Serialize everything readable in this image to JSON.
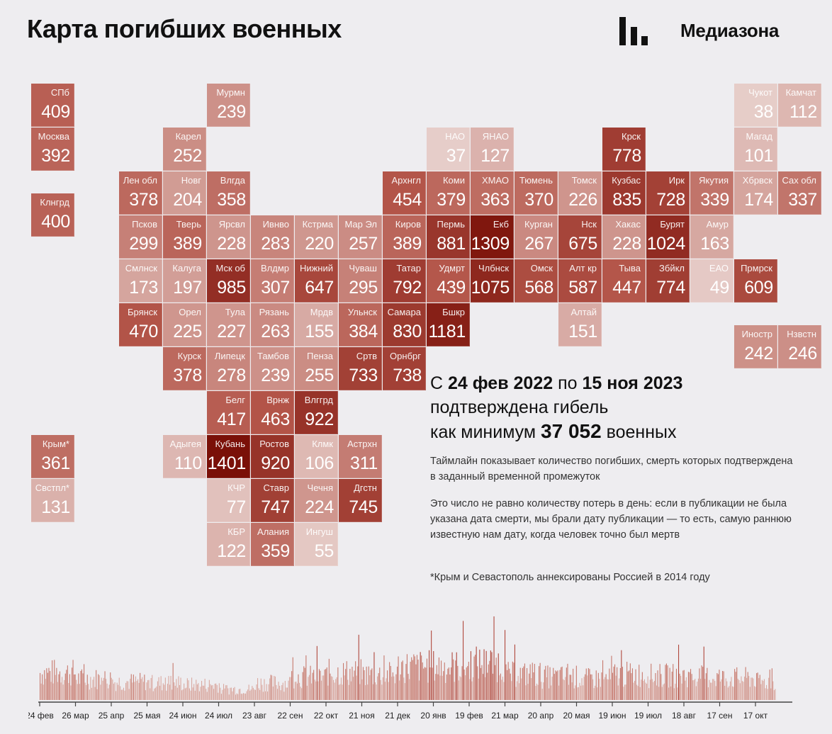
{
  "header": {
    "title": "Карта погибших военных",
    "logo_text": "Медиазона"
  },
  "colors": {
    "background": "#eeedf0",
    "scale": [
      "#e7cfcb",
      "#b4564a",
      "#7a1008"
    ]
  },
  "regions": [
    {
      "abbr": "СПб",
      "value": 409,
      "col": 0,
      "row": 0
    },
    {
      "abbr": "Мурмн",
      "value": 239,
      "col": 4,
      "row": 0
    },
    {
      "abbr": "Чукот",
      "value": 38,
      "col": 16,
      "row": 0
    },
    {
      "abbr": "Камчат",
      "value": 112,
      "col": 17,
      "row": 0
    },
    {
      "abbr": "Москва",
      "value": 392,
      "col": 0,
      "row": 1
    },
    {
      "abbr": "Карел",
      "value": 252,
      "col": 3,
      "row": 1
    },
    {
      "abbr": "НАО",
      "value": 37,
      "col": 9,
      "row": 1
    },
    {
      "abbr": "ЯНАО",
      "value": 127,
      "col": 10,
      "row": 1
    },
    {
      "abbr": "Крск",
      "value": 778,
      "col": 13,
      "row": 1
    },
    {
      "abbr": "Магад",
      "value": 101,
      "col": 16,
      "row": 1
    },
    {
      "abbr": "Лен обл",
      "value": 378,
      "col": 2,
      "row": 2
    },
    {
      "abbr": "Новг",
      "value": 204,
      "col": 3,
      "row": 2
    },
    {
      "abbr": "Влгда",
      "value": 358,
      "col": 4,
      "row": 2
    },
    {
      "abbr": "Архнгл",
      "value": 454,
      "col": 8,
      "row": 2
    },
    {
      "abbr": "Коми",
      "value": 379,
      "col": 9,
      "row": 2
    },
    {
      "abbr": "ХМАО",
      "value": 363,
      "col": 10,
      "row": 2
    },
    {
      "abbr": "Тюмень",
      "value": 370,
      "col": 11,
      "row": 2
    },
    {
      "abbr": "Томск",
      "value": 226,
      "col": 12,
      "row": 2
    },
    {
      "abbr": "Кузбас",
      "value": 835,
      "col": 13,
      "row": 2
    },
    {
      "abbr": "Ирк",
      "value": 728,
      "col": 14,
      "row": 2
    },
    {
      "abbr": "Якутия",
      "value": 339,
      "col": 15,
      "row": 2
    },
    {
      "abbr": "Хбрвск",
      "value": 174,
      "col": 16,
      "row": 2
    },
    {
      "abbr": "Сах обл",
      "value": 337,
      "col": 17,
      "row": 2
    },
    {
      "abbr": "Клнгрд",
      "value": 400,
      "col": 0,
      "row": 2.5
    },
    {
      "abbr": "Псков",
      "value": 299,
      "col": 2,
      "row": 3
    },
    {
      "abbr": "Тверь",
      "value": 389,
      "col": 3,
      "row": 3
    },
    {
      "abbr": "Ярсвл",
      "value": 228,
      "col": 4,
      "row": 3
    },
    {
      "abbr": "Ивнво",
      "value": 283,
      "col": 5,
      "row": 3
    },
    {
      "abbr": "Кстрма",
      "value": 220,
      "col": 6,
      "row": 3
    },
    {
      "abbr": "Мар Эл",
      "value": 257,
      "col": 7,
      "row": 3
    },
    {
      "abbr": "Киров",
      "value": 389,
      "col": 8,
      "row": 3
    },
    {
      "abbr": "Пермь",
      "value": 881,
      "col": 9,
      "row": 3
    },
    {
      "abbr": "Екб",
      "value": 1309,
      "col": 10,
      "row": 3
    },
    {
      "abbr": "Курган",
      "value": 267,
      "col": 11,
      "row": 3
    },
    {
      "abbr": "Нск",
      "value": 675,
      "col": 12,
      "row": 3
    },
    {
      "abbr": "Хакас",
      "value": 228,
      "col": 13,
      "row": 3
    },
    {
      "abbr": "Бурят",
      "value": 1024,
      "col": 14,
      "row": 3
    },
    {
      "abbr": "Амур",
      "value": 163,
      "col": 15,
      "row": 3
    },
    {
      "abbr": "Смлнск",
      "value": 173,
      "col": 2,
      "row": 4
    },
    {
      "abbr": "Калуга",
      "value": 197,
      "col": 3,
      "row": 4
    },
    {
      "abbr": "Мск об",
      "value": 985,
      "col": 4,
      "row": 4
    },
    {
      "abbr": "Влдмр",
      "value": 307,
      "col": 5,
      "row": 4
    },
    {
      "abbr": "Нижний",
      "value": 647,
      "col": 6,
      "row": 4
    },
    {
      "abbr": "Чуваш",
      "value": 295,
      "col": 7,
      "row": 4
    },
    {
      "abbr": "Татар",
      "value": 792,
      "col": 8,
      "row": 4
    },
    {
      "abbr": "Удмрт",
      "value": 439,
      "col": 9,
      "row": 4
    },
    {
      "abbr": "Члбнск",
      "value": 1075,
      "col": 10,
      "row": 4
    },
    {
      "abbr": "Омск",
      "value": 568,
      "col": 11,
      "row": 4
    },
    {
      "abbr": "Алт кр",
      "value": 587,
      "col": 12,
      "row": 4
    },
    {
      "abbr": "Тыва",
      "value": 447,
      "col": 13,
      "row": 4
    },
    {
      "abbr": "Збйкл",
      "value": 774,
      "col": 14,
      "row": 4
    },
    {
      "abbr": "ЕАО",
      "value": 49,
      "col": 15,
      "row": 4
    },
    {
      "abbr": "Прмрск",
      "value": 609,
      "col": 16,
      "row": 4
    },
    {
      "abbr": "Брянск",
      "value": 470,
      "col": 2,
      "row": 5
    },
    {
      "abbr": "Орел",
      "value": 225,
      "col": 3,
      "row": 5
    },
    {
      "abbr": "Тула",
      "value": 227,
      "col": 4,
      "row": 5
    },
    {
      "abbr": "Рязань",
      "value": 263,
      "col": 5,
      "row": 5
    },
    {
      "abbr": "Мрдв",
      "value": 155,
      "col": 6,
      "row": 5
    },
    {
      "abbr": "Ульнск",
      "value": 384,
      "col": 7,
      "row": 5
    },
    {
      "abbr": "Самара",
      "value": 830,
      "col": 8,
      "row": 5
    },
    {
      "abbr": "Бшкр",
      "value": 1181,
      "col": 9,
      "row": 5
    },
    {
      "abbr": "Алтай",
      "value": 151,
      "col": 12,
      "row": 5
    },
    {
      "abbr": "Иностр",
      "value": 242,
      "col": 16,
      "row": 5.5
    },
    {
      "abbr": "Нзвстн",
      "value": 246,
      "col": 17,
      "row": 5.5
    },
    {
      "abbr": "Курск",
      "value": 378,
      "col": 3,
      "row": 6
    },
    {
      "abbr": "Липецк",
      "value": 278,
      "col": 4,
      "row": 6
    },
    {
      "abbr": "Тамбов",
      "value": 239,
      "col": 5,
      "row": 6
    },
    {
      "abbr": "Пенза",
      "value": 255,
      "col": 6,
      "row": 6
    },
    {
      "abbr": "Сртв",
      "value": 733,
      "col": 7,
      "row": 6
    },
    {
      "abbr": "Орнбрг",
      "value": 738,
      "col": 8,
      "row": 6
    },
    {
      "abbr": "Белг",
      "value": 417,
      "col": 4,
      "row": 7
    },
    {
      "abbr": "Врнж",
      "value": 463,
      "col": 5,
      "row": 7
    },
    {
      "abbr": "Влггрд",
      "value": 922,
      "col": 6,
      "row": 7
    },
    {
      "abbr": "Крым*",
      "value": 361,
      "col": 0,
      "row": 8
    },
    {
      "abbr": "Адыгея",
      "value": 110,
      "col": 3,
      "row": 8
    },
    {
      "abbr": "Кубань",
      "value": 1401,
      "col": 4,
      "row": 8
    },
    {
      "abbr": "Ростов",
      "value": 920,
      "col": 5,
      "row": 8
    },
    {
      "abbr": "Клмк",
      "value": 106,
      "col": 6,
      "row": 8
    },
    {
      "abbr": "Астрхн",
      "value": 311,
      "col": 7,
      "row": 8
    },
    {
      "abbr": "Свстпл*",
      "value": 131,
      "col": 0,
      "row": 9
    },
    {
      "abbr": "КЧР",
      "value": 77,
      "col": 4,
      "row": 9
    },
    {
      "abbr": "Ставр",
      "value": 747,
      "col": 5,
      "row": 9
    },
    {
      "abbr": "Чечня",
      "value": 224,
      "col": 6,
      "row": 9
    },
    {
      "abbr": "Дгстн",
      "value": 745,
      "col": 7,
      "row": 9
    },
    {
      "abbr": "КБР",
      "value": 122,
      "col": 4,
      "row": 10
    },
    {
      "abbr": "Алания",
      "value": 359,
      "col": 5,
      "row": 10
    },
    {
      "abbr": "Ингуш",
      "value": 55,
      "col": 6,
      "row": 10
    }
  ],
  "summary": {
    "line1_prefix": "С ",
    "date_from": "24 фев 2022",
    "line1_mid": " по ",
    "date_to": "15 ноя 2023",
    "line2": "подтверждена гибель",
    "line3_prefix": "как минимум ",
    "total": "37 052",
    "line3_suffix": " военных"
  },
  "notes": [
    "Таймлайн показывает количество погибших, смерть которых подтверждена в заданный временной промежуток",
    "Это число не равно количеству потерь в день: если в публикации не была указана дата смерти, мы брали дату публикации — то есть, самую раннюю известную нам дату, когда человек точно был мертв",
    "*Крым и Севастополь аннексированы Россией в 2014 году"
  ],
  "chart_data": {
    "type": "bar",
    "title": "",
    "xlabel": "",
    "ylabel": "",
    "x_start": "2022-02-24",
    "x_end": "2023-11-15",
    "tick_labels": [
      "24 фев",
      "26 мар",
      "25 апр",
      "25 мая",
      "24 июн",
      "24 июл",
      "23 авг",
      "22 сен",
      "22 окт",
      "21 ноя",
      "21 дек",
      "20 янв",
      "19 фев",
      "21 мар",
      "20 апр",
      "20 мая",
      "19 июн",
      "19 июл",
      "18 авг",
      "17 сен",
      "17 окт"
    ],
    "segments": [
      {
        "from": "24 фев",
        "to": "26 мар",
        "level": 0.45
      },
      {
        "from": "26 мар",
        "to": "25 апр",
        "level": 0.35
      },
      {
        "from": "25 апр",
        "to": "25 мая",
        "level": 0.3
      },
      {
        "from": "25 мая",
        "to": "24 июн",
        "level": 0.28
      },
      {
        "from": "24 июн",
        "to": "24 июл",
        "level": 0.25
      },
      {
        "from": "24 июл",
        "to": "23 авг",
        "level": 0.18
      },
      {
        "from": "23 авг",
        "to": "22 сен",
        "level": 0.28
      },
      {
        "from": "22 сен",
        "to": "22 окт",
        "level": 0.38
      },
      {
        "from": "22 окт",
        "to": "21 ноя",
        "level": 0.45
      },
      {
        "from": "21 ноя",
        "to": "21 дек",
        "level": 0.42
      },
      {
        "from": "21 дек",
        "to": "20 янв",
        "level": 0.55
      },
      {
        "from": "20 янв",
        "to": "19 фев",
        "level": 0.55
      },
      {
        "from": "19 фев",
        "to": "21 мар",
        "level": 0.6
      },
      {
        "from": "21 мар",
        "to": "20 апр",
        "level": 0.42
      },
      {
        "from": "20 апр",
        "to": "20 мая",
        "level": 0.38
      },
      {
        "from": "20 мая",
        "to": "19 июн",
        "level": 0.35
      },
      {
        "from": "19 июн",
        "to": "19 июл",
        "level": 0.42
      },
      {
        "from": "19 июл",
        "to": "18 авг",
        "level": 0.4
      },
      {
        "from": "18 авг",
        "to": "17 сен",
        "level": 0.38
      },
      {
        "from": "17 сен",
        "to": "17 окт",
        "level": 0.36
      },
      {
        "from": "17 окт",
        "to": "15 ноя",
        "level": 0.3
      }
    ]
  }
}
